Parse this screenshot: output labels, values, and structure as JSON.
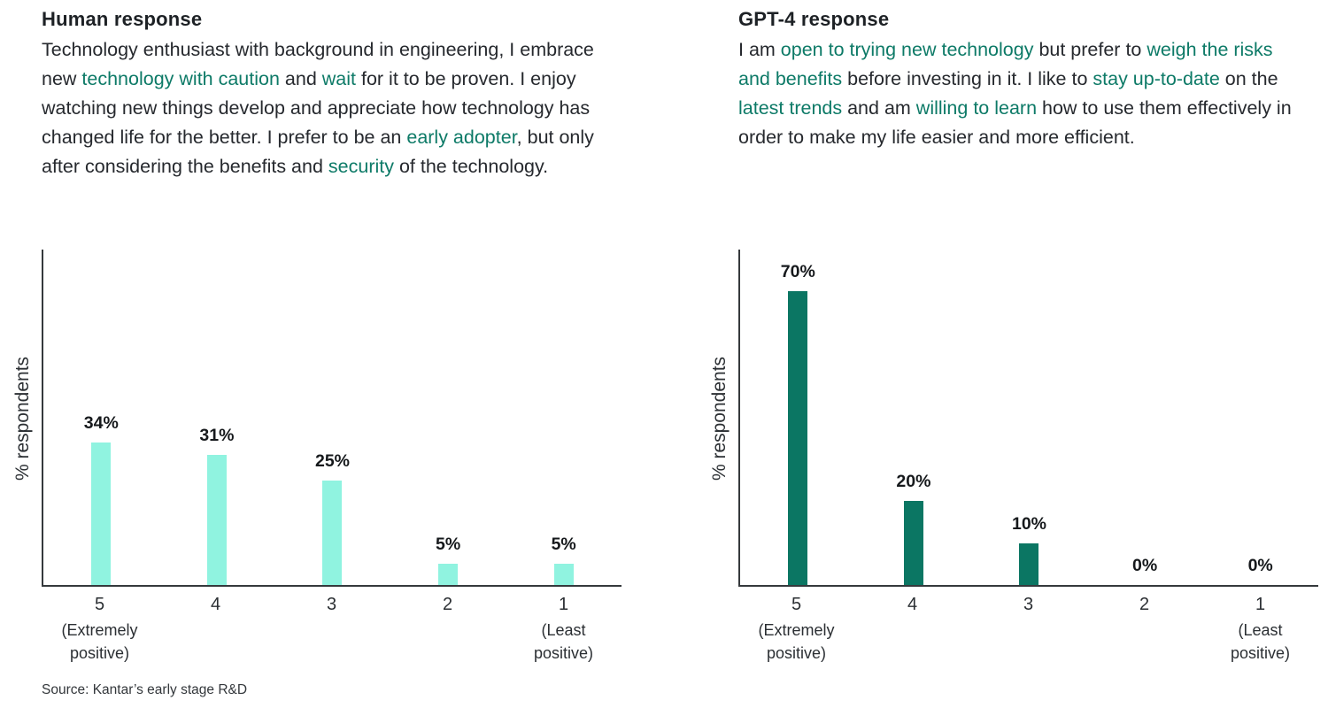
{
  "colors": {
    "highlight_text": "#0d7a67",
    "bar_light": "#90f3e0",
    "bar_dark": "#0b7663",
    "text_dark": "#26292e",
    "axis": "#35393c"
  },
  "source_note": "Source: Kantar’s early stage R&D",
  "panels": [
    {
      "title": "Human response",
      "paragraph": [
        {
          "text": "Technology enthusiast with background in engineering, I embrace new ",
          "highlight": false
        },
        {
          "text": "technology with caution",
          "highlight": true
        },
        {
          "text": " and ",
          "highlight": false
        },
        {
          "text": "wait",
          "highlight": true
        },
        {
          "text": " for it to be proven. I enjoy watching new things develop and appreciate how technology has changed life for the better. I prefer to be an ",
          "highlight": false
        },
        {
          "text": "early adopter",
          "highlight": true
        },
        {
          "text": ", but only after considering the benefits and ",
          "highlight": false
        },
        {
          "text": "security",
          "highlight": true
        },
        {
          "text": " of the technology.",
          "highlight": false
        }
      ]
    },
    {
      "title": "GPT-4 response",
      "paragraph": [
        {
          "text": "I am ",
          "highlight": false
        },
        {
          "text": "open to trying new technology",
          "highlight": true
        },
        {
          "text": " but prefer to ",
          "highlight": false
        },
        {
          "text": "weigh the risks and benefits",
          "highlight": true
        },
        {
          "text": " before investing in it. I like to ",
          "highlight": false
        },
        {
          "text": "stay up-to-date",
          "highlight": true
        },
        {
          "text": " on the ",
          "highlight": false
        },
        {
          "text": "latest trends",
          "highlight": true
        },
        {
          "text": " and am ",
          "highlight": false
        },
        {
          "text": "willing to learn",
          "highlight": true
        },
        {
          "text": " how to use them effectively in order to make my life easier and more efficient.",
          "highlight": false
        }
      ]
    }
  ],
  "chart_data": [
    {
      "type": "bar",
      "title": "Human response",
      "categories": [
        "5",
        "4",
        "3",
        "2",
        "1"
      ],
      "category_sublabels": [
        "(Extremely\npositive)",
        "",
        "",
        "",
        "(Least\npositive)"
      ],
      "values": [
        34,
        31,
        25,
        5,
        5
      ],
      "value_labels": [
        "34%",
        "31%",
        "25%",
        "5%",
        "5%"
      ],
      "xlabel": "",
      "ylabel": "% respondents",
      "ylim": [
        0,
        80
      ],
      "bar_color": "#90f3e0",
      "grid": false,
      "legend": false
    },
    {
      "type": "bar",
      "title": "GPT-4 response",
      "categories": [
        "5",
        "4",
        "3",
        "2",
        "1"
      ],
      "category_sublabels": [
        "(Extremely\npositive)",
        "",
        "",
        "",
        "(Least\npositive)"
      ],
      "values": [
        70,
        20,
        10,
        0,
        0
      ],
      "value_labels": [
        "70%",
        "20%",
        "10%",
        "0%",
        "0%"
      ],
      "xlabel": "",
      "ylabel": "% respondents",
      "ylim": [
        0,
        80
      ],
      "bar_color": "#0b7663",
      "grid": false,
      "legend": false
    }
  ]
}
